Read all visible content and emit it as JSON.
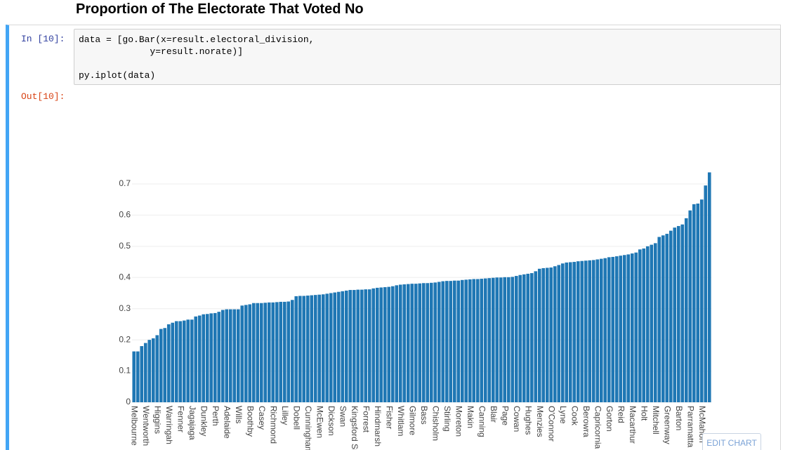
{
  "heading": "Proportion of The Electorate That Voted No",
  "input_prompt": "In [10]:",
  "code": [
    "data = [go.Bar(x=result.electoral_division,",
    "             y=result.norate)]",
    "py.iplot(data)"
  ],
  "output_prompt": "Out[10]:",
  "edit_button": "EDIT CHART",
  "chart_data": {
    "type": "bar",
    "color": "#1f77b4",
    "grid": true,
    "ylim": [
      0,
      0.74
    ],
    "yticks": [
      0,
      0.1,
      0.2,
      0.3,
      0.4,
      0.5,
      0.6,
      0.7
    ],
    "categories": [
      "Melbourne",
      null,
      null,
      "Wentworth",
      null,
      null,
      "Higgins",
      null,
      null,
      "Warringah",
      null,
      null,
      "Fenner",
      null,
      null,
      "Jagajaga",
      null,
      null,
      "Dunkley",
      null,
      null,
      "Perth",
      null,
      null,
      "Adelaide",
      null,
      null,
      "Wills",
      null,
      null,
      "Boothby",
      null,
      null,
      "Casey",
      null,
      null,
      "Richmond",
      null,
      null,
      "Lilley",
      null,
      null,
      "Dobell",
      null,
      null,
      "Cunningham",
      null,
      null,
      "McEwen",
      null,
      null,
      "Dickson",
      null,
      null,
      "Swan",
      null,
      null,
      "Kingsford Smith",
      null,
      null,
      "Forrest",
      null,
      null,
      "Hindmarsh",
      null,
      null,
      "Fisher",
      null,
      null,
      "Whitlam",
      null,
      null,
      "Gilmore",
      null,
      null,
      "Bass",
      null,
      null,
      "Chisholm",
      null,
      null,
      "Stirling",
      null,
      null,
      "Moreton",
      null,
      null,
      "Makin",
      null,
      null,
      "Canning",
      null,
      null,
      "Blair",
      null,
      null,
      "Page",
      null,
      null,
      "Cowan",
      null,
      null,
      "Hughes",
      null,
      null,
      "Menzies",
      null,
      null,
      "O'Connor",
      null,
      null,
      "Lyne",
      null,
      null,
      "Cook",
      null,
      null,
      "Berowra",
      null,
      null,
      "Capricornia",
      null,
      null,
      "Gorton",
      null,
      null,
      "Reid",
      null,
      null,
      "Macarthur",
      null,
      null,
      "Holt",
      null,
      null,
      "Mitchell",
      null,
      null,
      "Greenway",
      null,
      null,
      "Barton",
      null,
      null,
      "Parramatta",
      null,
      null,
      "McMahon",
      null,
      null
    ],
    "values": [
      0.163,
      0.163,
      0.18,
      0.19,
      0.2,
      0.205,
      0.215,
      0.235,
      0.238,
      0.25,
      0.255,
      0.26,
      0.26,
      0.262,
      0.265,
      0.265,
      0.275,
      0.278,
      0.282,
      0.283,
      0.285,
      0.286,
      0.29,
      0.296,
      0.298,
      0.298,
      0.298,
      0.298,
      0.31,
      0.312,
      0.314,
      0.318,
      0.318,
      0.318,
      0.319,
      0.32,
      0.32,
      0.321,
      0.322,
      0.322,
      0.323,
      0.328,
      0.34,
      0.341,
      0.341,
      0.342,
      0.343,
      0.344,
      0.345,
      0.346,
      0.348,
      0.35,
      0.352,
      0.354,
      0.356,
      0.358,
      0.36,
      0.36,
      0.361,
      0.361,
      0.362,
      0.362,
      0.365,
      0.367,
      0.368,
      0.369,
      0.37,
      0.372,
      0.375,
      0.377,
      0.378,
      0.379,
      0.38,
      0.38,
      0.381,
      0.382,
      0.382,
      0.383,
      0.384,
      0.386,
      0.388,
      0.389,
      0.389,
      0.39,
      0.39,
      0.392,
      0.393,
      0.394,
      0.395,
      0.395,
      0.396,
      0.397,
      0.398,
      0.399,
      0.4,
      0.4,
      0.401,
      0.401,
      0.402,
      0.405,
      0.408,
      0.41,
      0.412,
      0.414,
      0.42,
      0.428,
      0.43,
      0.431,
      0.432,
      0.436,
      0.44,
      0.445,
      0.448,
      0.449,
      0.45,
      0.452,
      0.453,
      0.454,
      0.455,
      0.456,
      0.458,
      0.46,
      0.462,
      0.465,
      0.466,
      0.468,
      0.47,
      0.472,
      0.474,
      0.477,
      0.48,
      0.49,
      0.493,
      0.5,
      0.505,
      0.51,
      0.53,
      0.535,
      0.54,
      0.55,
      0.56,
      0.565,
      0.57,
      0.59,
      0.615,
      0.635,
      0.637,
      0.65,
      0.695,
      0.737
    ]
  }
}
